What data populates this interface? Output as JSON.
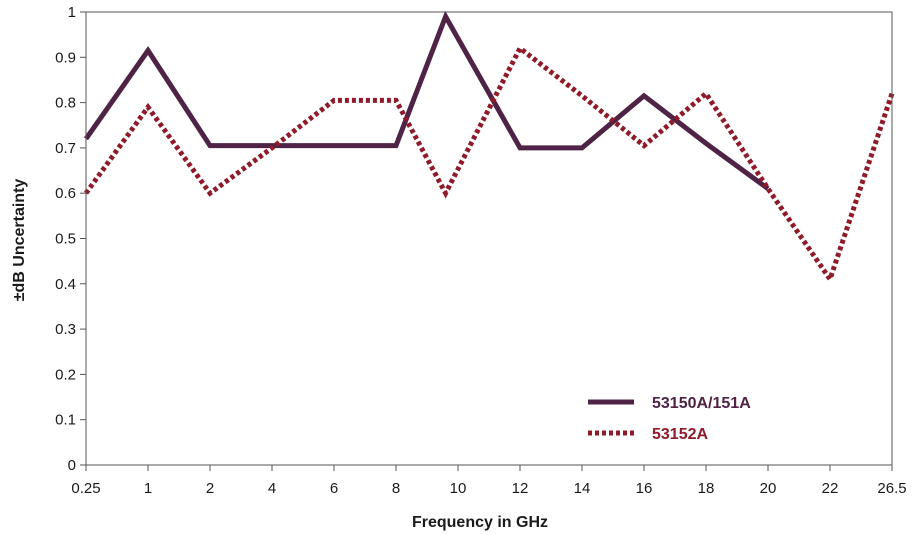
{
  "chart_data": {
    "type": "line",
    "title": "",
    "xlabel": "Frequency in GHz",
    "ylabel": "±dB Uncertainty",
    "categories": [
      "0.25",
      "1",
      "2",
      "4",
      "6",
      "8",
      "10",
      "12",
      "14",
      "16",
      "18",
      "20",
      "22",
      "26.5"
    ],
    "yticks": [
      "0",
      "0.1",
      "0.2",
      "0.3",
      "0.4",
      "0.5",
      "0.6",
      "0.7",
      "0.8",
      "0.9",
      "1"
    ],
    "ylim": [
      0,
      1
    ],
    "grid": false,
    "legend_position": "bottom-right",
    "series": [
      {
        "name": "53150A/151A",
        "style": "solid",
        "color": "#4f2345",
        "points": [
          [
            0,
            0.72
          ],
          [
            1,
            0.915
          ],
          [
            2,
            0.705
          ],
          [
            3,
            0.705
          ],
          [
            4,
            0.705
          ],
          [
            5,
            0.705
          ],
          [
            5.8,
            0.99
          ],
          [
            7,
            0.7
          ],
          [
            8,
            0.7
          ],
          [
            9,
            0.815
          ],
          [
            10,
            0.71
          ],
          [
            11,
            0.61
          ]
        ]
      },
      {
        "name": "53152A",
        "style": "dotted",
        "color": "#8f1a2a",
        "points": [
          [
            0,
            0.6
          ],
          [
            1,
            0.79
          ],
          [
            2,
            0.6
          ],
          [
            3,
            0.7
          ],
          [
            4,
            0.805
          ],
          [
            5,
            0.805
          ],
          [
            5.8,
            0.6
          ],
          [
            7,
            0.92
          ],
          [
            8,
            0.815
          ],
          [
            9,
            0.705
          ],
          [
            10,
            0.82
          ],
          [
            11,
            0.61
          ],
          [
            12,
            0.41
          ],
          [
            13,
            0.82
          ]
        ]
      }
    ]
  }
}
